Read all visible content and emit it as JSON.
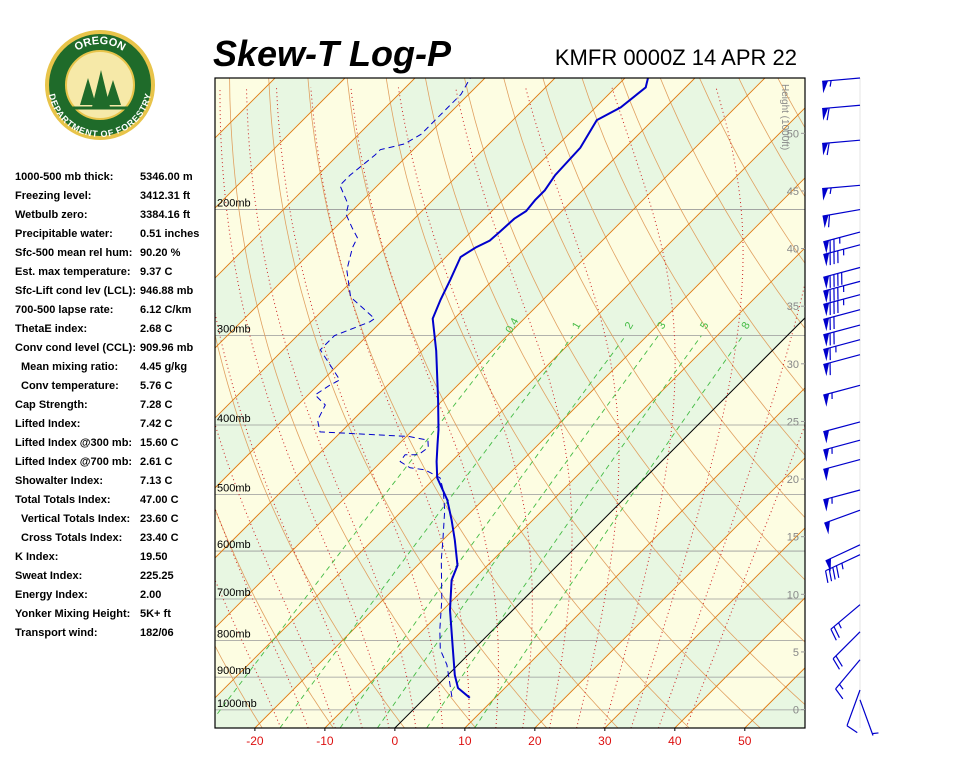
{
  "logo": {
    "top": "OREGON",
    "bottom": "DEPARTMENT OF FORESTRY"
  },
  "header": {
    "title": "Skew-T Log-P",
    "subtitle": "KMFR 0000Z 14 APR 22"
  },
  "indices": [
    {
      "label": "1000-500 mb thick:",
      "value": "5346.00 m"
    },
    {
      "label": "Freezing level:",
      "value": "3412.31 ft"
    },
    {
      "label": "Wetbulb zero:",
      "value": "3384.16 ft"
    },
    {
      "label": "Precipitable water:",
      "value": "0.51 inches"
    },
    {
      "label": "Sfc-500 mean rel hum:",
      "value": "90.20 %"
    },
    {
      "label": "Est. max temperature:",
      "value": "9.37 C"
    },
    {
      "label": "Sfc-Lift cond lev (LCL):",
      "value": "946.88 mb"
    },
    {
      "label": "700-500 lapse rate:",
      "value": "6.12 C/km"
    },
    {
      "label": "ThetaE index:",
      "value": "2.68 C"
    },
    {
      "label": "Conv cond level (CCL):",
      "value": "909.96 mb",
      "sub": [
        {
          "label": "Mean mixing ratio:",
          "value": "4.45 g/kg"
        },
        {
          "label": "Conv temperature:",
          "value": "5.76 C"
        }
      ]
    },
    {
      "label": "Cap Strength:",
      "value": "7.28 C"
    },
    {
      "label": "Lifted Index:",
      "value": "7.42 C"
    },
    {
      "label": "Lifted Index @300 mb:",
      "value": "15.60 C"
    },
    {
      "label": "Lifted Index @700 mb:",
      "value": "2.61 C"
    },
    {
      "label": "Showalter Index:",
      "value": "7.13 C"
    },
    {
      "label": "Total Totals Index:",
      "value": "47.00 C",
      "sub": [
        {
          "label": "Vertical Totals Index:",
          "value": "23.60 C"
        },
        {
          "label": "Cross Totals Index:",
          "value": "23.40 C"
        }
      ]
    },
    {
      "label": "K Index:",
      "value": "19.50"
    },
    {
      "label": "Sweat Index:",
      "value": "225.25"
    },
    {
      "label": "Energy Index:",
      "value": "2.00"
    },
    {
      "label": "Yonker Mixing Height:",
      "value": "5K+ ft"
    },
    {
      "label": "Transport wind:",
      "value": "182/06"
    }
  ],
  "chart_data": {
    "type": "skew-t",
    "xlim": [
      -25.7,
      58.6
    ],
    "xticks": [
      -20,
      -10,
      0,
      10,
      20,
      30,
      40,
      50
    ],
    "ylim": [
      1060,
      131
    ],
    "yticks": [
      {
        "value": 200,
        "label": "200mb"
      },
      {
        "value": 300,
        "label": "300mb"
      },
      {
        "value": 400,
        "label": "400mb"
      },
      {
        "value": 500,
        "label": "500mb"
      },
      {
        "value": 600,
        "label": "600mb"
      },
      {
        "value": 700,
        "label": "700mb"
      },
      {
        "value": 800,
        "label": "800mb"
      },
      {
        "value": 900,
        "label": "900mb"
      },
      {
        "value": 1000,
        "label": "1000mb"
      }
    ],
    "y2_label": "Height (1000ft)",
    "y2lim": [
      -1.6,
      54.8
    ],
    "y2ticks": [
      0,
      5,
      10,
      15,
      20,
      25,
      30,
      35,
      40,
      45,
      50
    ],
    "mixing_ratios": [
      0.4,
      1,
      2,
      3,
      5,
      8
    ],
    "profiles": [
      {
        "color": "#0000cc",
        "dashed": false,
        "pressure": [
          962,
          932,
          894,
          824,
          725,
          659,
          628,
          579,
          543,
          509,
          474,
          450,
          426,
          406,
          369,
          315,
          284,
          267,
          251,
          233,
          226,
          221,
          215,
          206,
          201,
          194,
          188,
          179,
          164,
          150,
          144,
          135,
          131
        ],
        "values": [
          6.4,
          3.3,
          1.0,
          -2.9,
          -9.0,
          -13.0,
          -14.3,
          -18.3,
          -21.6,
          -25.1,
          -29.7,
          -32.1,
          -34.4,
          -36.4,
          -40.7,
          -48.0,
          -53.1,
          -54.7,
          -56.1,
          -57.9,
          -57.1,
          -56.1,
          -55.9,
          -55.7,
          -55.1,
          -55.4,
          -55.4,
          -56.1,
          -56.4,
          -58.0,
          -56.4,
          -55.7,
          -56.7
        ]
      },
      {
        "color": "#0000cc",
        "dashed": true,
        "pressure": [
          959,
          865,
          824,
          773,
          702,
          617,
          579,
          526,
          493,
          474,
          462,
          459,
          450,
          440,
          440,
          430,
          420,
          415,
          409,
          394,
          375,
          363,
          352,
          346,
          314,
          300,
          287,
          284,
          265,
          243,
          226,
          219,
          212,
          203,
          197,
          185,
          179,
          168,
          165,
          162,
          157,
          138,
          131
        ],
        "values": [
          3.7,
          -1.6,
          -4.7,
          -7.6,
          -11.6,
          -17.4,
          -20.0,
          -24.0,
          -27.1,
          -29.3,
          -32.6,
          -35.0,
          -37.3,
          -37.6,
          -35.7,
          -35.3,
          -36.4,
          -39.6,
          -53.0,
          -55.0,
          -56.1,
          -59.0,
          -58.3,
          -57.6,
          -64.7,
          -64.7,
          -61.6,
          -61.4,
          -67.9,
          -72.3,
          -74.7,
          -75.4,
          -77.6,
          -80.4,
          -81.4,
          -85.4,
          -85.4,
          -84.7,
          -84.7,
          -82.1,
          -81.1,
          -81.1,
          -82.1
        ]
      }
    ],
    "winds": {
      "color": "#0000cc",
      "pressure": [
        131,
        143,
        160,
        185,
        200,
        215,
        224,
        241,
        252,
        263,
        276,
        290,
        304,
        319,
        352,
        396,
        420,
        447,
        493,
        526,
        588,
        607,
        713,
        778,
        851,
        938,
        968
      ],
      "direction": [
        265,
        265,
        265,
        265,
        260,
        255,
        255,
        255,
        255,
        255,
        255,
        255,
        255,
        255,
        255,
        255,
        255,
        255,
        255,
        250,
        245,
        245,
        230,
        225,
        220,
        200,
        160
      ],
      "speed": [
        55,
        60,
        60,
        55,
        60,
        75,
        85,
        90,
        85,
        85,
        70,
        70,
        65,
        60,
        55,
        50,
        55,
        50,
        55,
        50,
        50,
        45,
        25,
        20,
        15,
        10,
        5
      ]
    }
  }
}
